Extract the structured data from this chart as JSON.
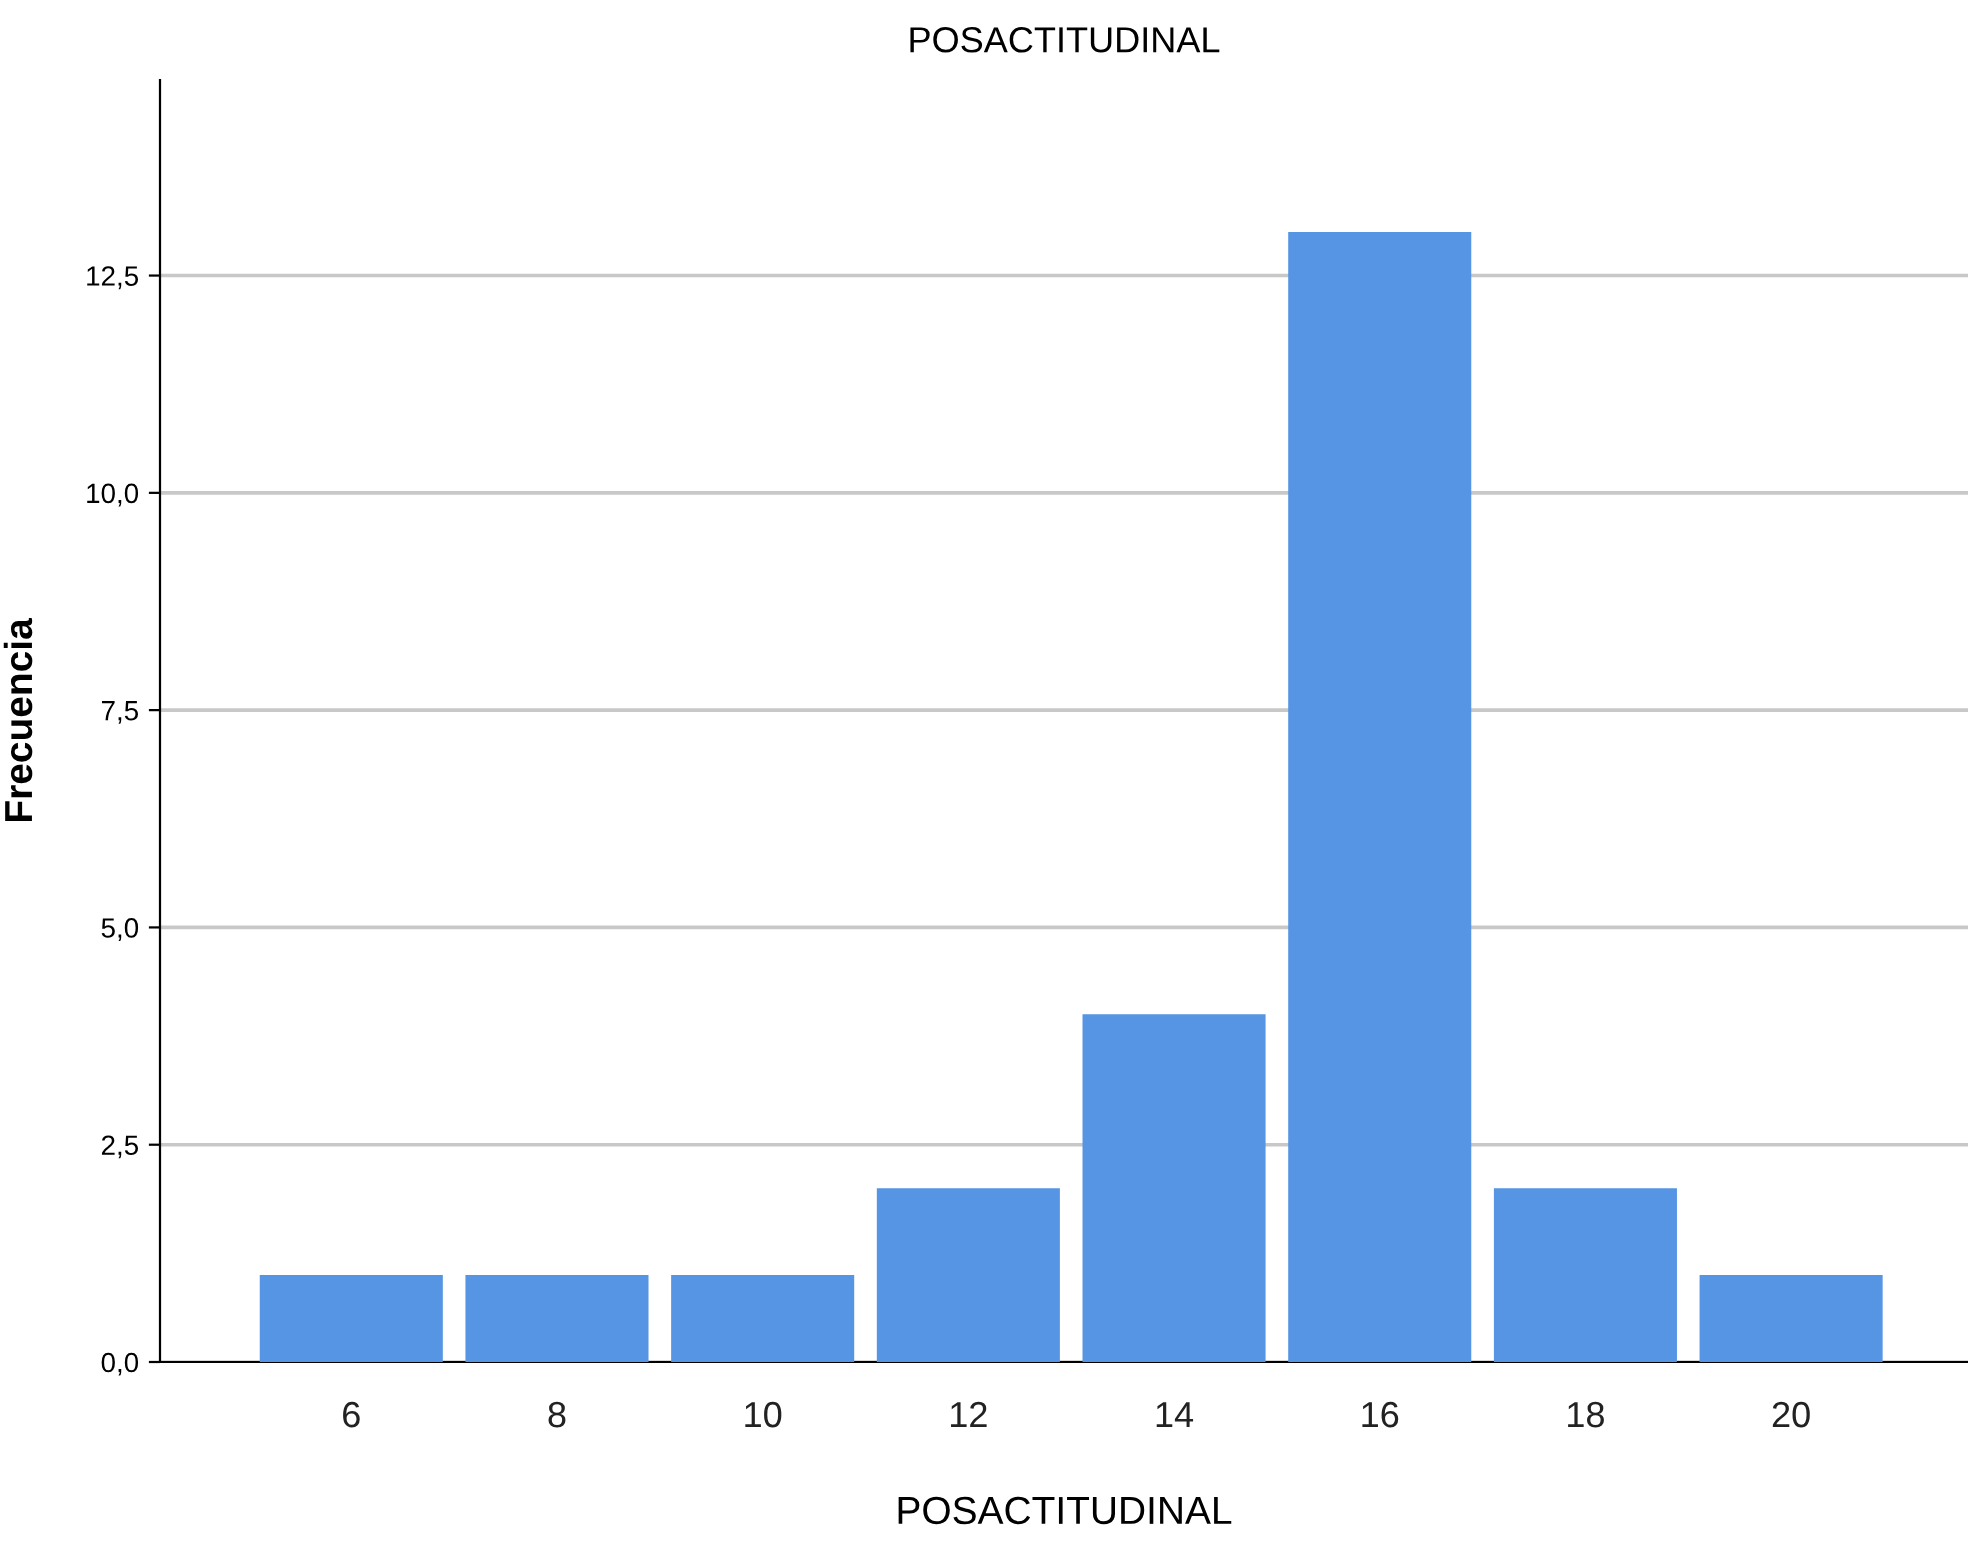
{
  "chart_data": {
    "type": "bar",
    "title": "POSACTITUDINAL",
    "xlabel": "POSACTITUDINAL",
    "ylabel": "Frecuencia",
    "categories": [
      "6",
      "8",
      "10",
      "12",
      "14",
      "16",
      "18",
      "20"
    ],
    "values": [
      1,
      1,
      1,
      2,
      4,
      13,
      2,
      1
    ],
    "color": "#5595e3",
    "ylim": [
      0,
      14.75
    ],
    "yticks": [
      {
        "value": 0,
        "label": "0,0"
      },
      {
        "value": 2.5,
        "label": "2,5"
      },
      {
        "value": 5,
        "label": "5,0"
      },
      {
        "value": 7.5,
        "label": "7,5"
      },
      {
        "value": 10,
        "label": "10,0"
      },
      {
        "value": 12.5,
        "label": "12,5"
      }
    ],
    "grid": "y"
  }
}
